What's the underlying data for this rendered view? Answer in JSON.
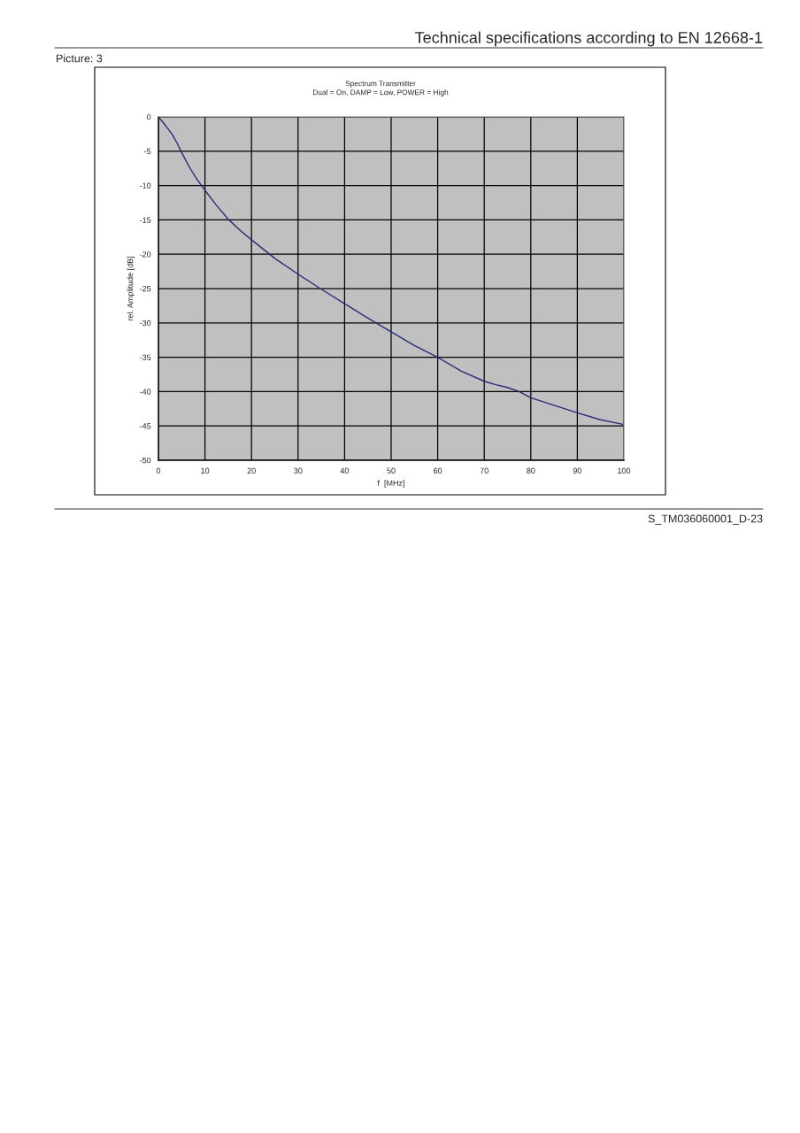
{
  "chart_data": {
    "type": "line",
    "title": "Spectrum Transmitter",
    "subtitle": "Dual = On, DAMP = Low, POWER = High",
    "xlabel": "f  [MHz]",
    "ylabel": "rel. Amplitude [dB]",
    "annotations": [
      "Technical specifications according to EN 12668-1",
      "Picture: 3",
      "S_TM036060001_D-23"
    ],
    "series": [
      {
        "color": "#2a2a7a",
        "x": [
          0,
          1,
          2,
          3,
          4,
          5,
          6,
          7,
          8,
          10,
          12.5,
          15,
          17.5,
          20,
          25,
          30,
          35,
          40,
          45,
          50,
          55,
          60,
          65,
          70,
          72.5,
          75,
          77.5,
          80,
          85,
          90,
          95,
          100
        ],
        "values": [
          0,
          -0.8,
          -1.7,
          -2.6,
          -3.8,
          -5.2,
          -6.5,
          -7.7,
          -8.8,
          -10.7,
          -12.9,
          -14.9,
          -16.5,
          -17.9,
          -20.6,
          -22.9,
          -25.1,
          -27.2,
          -29.3,
          -31.3,
          -33.3,
          -35.0,
          -37.0,
          -38.5,
          -39.0,
          -39.4,
          -40.0,
          -40.9,
          -42.0,
          -43.1,
          -44.1,
          -44.8
        ]
      }
    ],
    "xlim": [
      0,
      100
    ],
    "xticks": [
      0,
      10,
      20,
      30,
      40,
      50,
      60,
      70,
      80,
      90,
      100
    ],
    "ylim": [
      -50,
      0
    ],
    "yticks": [
      -50,
      -45,
      -40,
      -35,
      -30,
      -25,
      -20,
      -15,
      -10,
      -5,
      0
    ],
    "grid": true,
    "marker": "none",
    "line_style": "solid"
  }
}
